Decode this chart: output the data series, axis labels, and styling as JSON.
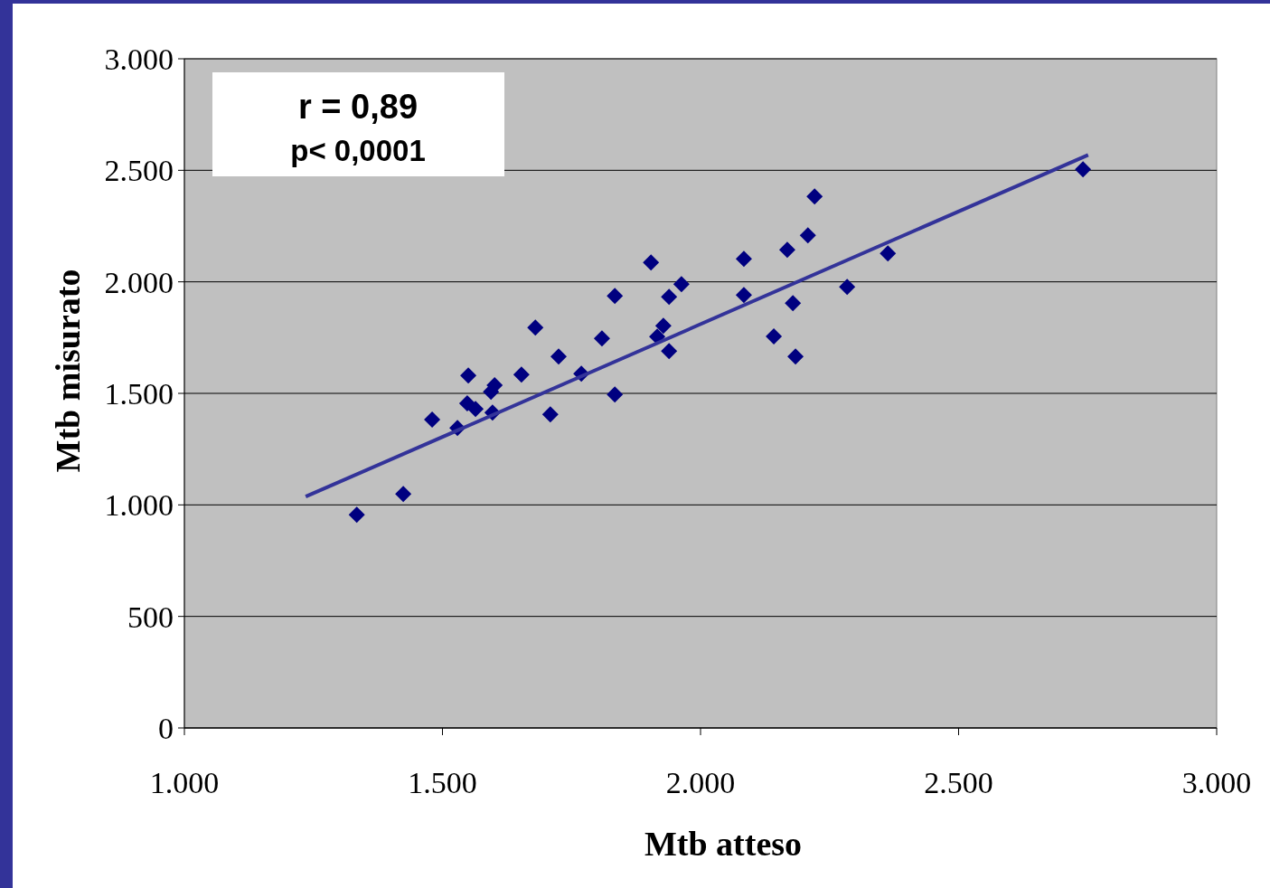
{
  "chart_data": {
    "type": "scatter",
    "xlabel": "Mtb atteso",
    "ylabel": "Mtb misurato",
    "annotations": [
      "r = 0,89",
      "p< 0,0001"
    ],
    "xlim": [
      1000,
      3000
    ],
    "xticks": [
      {
        "value": 1000,
        "label": "1.000"
      },
      {
        "value": 1500,
        "label": "1.500"
      },
      {
        "value": 2000,
        "label": "2.000"
      },
      {
        "value": 2500,
        "label": "2.500"
      },
      {
        "value": 3000,
        "label": "3.000"
      }
    ],
    "ylim": [
      0,
      3000
    ],
    "yticks": [
      0,
      500,
      {
        "value": 1000,
        "label": "1.000"
      },
      {
        "value": 1500,
        "label": "1.500"
      },
      {
        "value": 2000,
        "label": "2.000"
      },
      {
        "value": 2500,
        "label": "2.500"
      },
      {
        "value": 3000,
        "label": "3.000"
      }
    ],
    "grid": "y",
    "series": [
      {
        "color": "#000080",
        "marker": "diamond",
        "x": [
          1334,
          1424,
          1480,
          1529,
          1550,
          1548,
          1564,
          1594,
          1601,
          1597,
          1653,
          1680,
          1709,
          1725,
          1769,
          1809,
          1834,
          1834,
          1904,
          1916,
          1928,
          1939,
          1939,
          1963,
          2084,
          2084,
          2142,
          2168,
          2179,
          2184,
          2208,
          2221,
          2284,
          2363,
          2741
        ],
        "values": [
          956,
          1049,
          1382,
          1345,
          1580,
          1455,
          1430,
          1507,
          1536,
          1414,
          1584,
          1795,
          1406,
          1665,
          1588,
          1746,
          1495,
          1937,
          2087,
          1754,
          1803,
          1933,
          1690,
          1990,
          2103,
          1941,
          1755,
          2144,
          1904,
          1665,
          2208,
          2383,
          1977,
          2127,
          2504
        ]
      },
      {
        "type": "line",
        "color": "#333399",
        "line_style": "solid",
        "x": [
          1235,
          2751
        ],
        "values": [
          1037,
          2569
        ]
      }
    ]
  }
}
